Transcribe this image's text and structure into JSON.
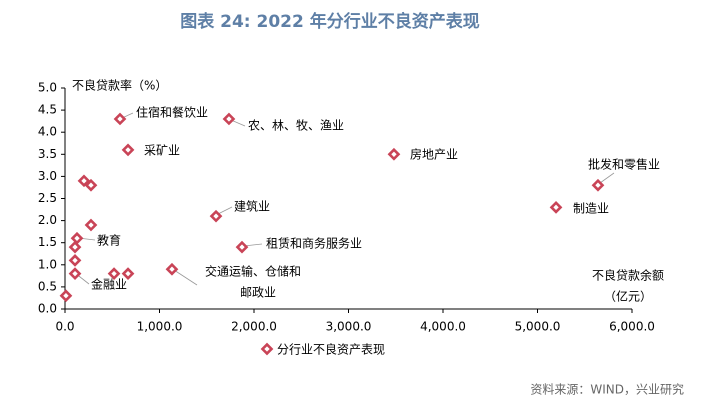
{
  "chart_data": {
    "type": "scatter",
    "title": "图表 24: 2022 年分行业不良资产表现",
    "y_label": "不良贷款率（%）",
    "x_label": [
      "不良贷款余额",
      "（亿元）"
    ],
    "source": "资料来源：WIND，兴业研究",
    "x": [
      10,
      106,
      106,
      106,
      127,
      275,
      201,
      275,
      519,
      667,
      1132,
      582,
      667,
      1735,
      1598,
      1873,
      3481,
      5196,
      5640
    ],
    "series": [
      {
        "name": "分行业不良资产表现",
        "color": "#c94457",
        "values": [
          0.3,
          0.8,
          1.1,
          1.4,
          1.6,
          1.9,
          2.9,
          2.8,
          0.8,
          0.8,
          0.9,
          4.3,
          3.6,
          4.3,
          2.1,
          1.4,
          3.5,
          2.3,
          2.8
        ]
      }
    ],
    "annotations": [
      "金融业",
      "教育",
      "住宿和餐饮业",
      "采矿业",
      "农、林、牧、渔业",
      "建筑业",
      "租赁和商务服务业",
      [
        "交通运输、仓储和",
        "邮政业"
      ],
      "房地产业",
      "制造业",
      "批发和零售业"
    ],
    "xlim": [
      0,
      6000
    ],
    "xticks": [
      {
        "value": 0,
        "label": "0.0"
      },
      {
        "value": 1000,
        "label": "1,000.0"
      },
      {
        "value": 2000,
        "label": "2,000.0"
      },
      {
        "value": 3000,
        "label": "3,000.0"
      },
      {
        "value": 4000,
        "label": "4,000.0"
      },
      {
        "value": 5000,
        "label": "5,000.0"
      },
      {
        "value": 6000,
        "label": "6,000.0"
      }
    ],
    "ylim": [
      0,
      5
    ],
    "yticks": [
      {
        "value": 0,
        "label": "0.0"
      },
      0.5,
      {
        "value": 1,
        "label": "1.0"
      },
      1.5,
      {
        "value": 2,
        "label": "2.0"
      },
      2.5,
      {
        "value": 3,
        "label": "3.0"
      },
      3.5,
      {
        "value": 4,
        "label": "4.0"
      },
      4.5,
      {
        "value": 5,
        "label": "5.0"
      }
    ],
    "grid": false
  }
}
